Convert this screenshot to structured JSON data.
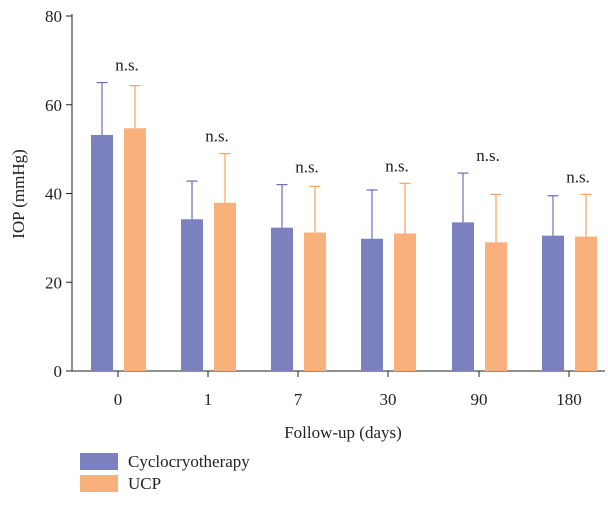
{
  "chart_data": {
    "type": "bar",
    "title": "",
    "xlabel": "Follow-up (days)",
    "ylabel": "IOP (mmHg)",
    "ylim": [
      0,
      80
    ],
    "yticks": [
      0,
      20,
      40,
      60,
      80
    ],
    "categories": [
      "0",
      "1",
      "7",
      "30",
      "90",
      "180"
    ],
    "series": [
      {
        "name": "Cyclocryotherapy",
        "color": "#7b80bf",
        "values": [
          53.2,
          34.2,
          32.3,
          29.8,
          33.5,
          30.5
        ],
        "error_upper": [
          65.0,
          42.8,
          42.0,
          40.8,
          44.6,
          39.5
        ]
      },
      {
        "name": "UCP",
        "color": "#f9b07a",
        "values": [
          54.7,
          37.9,
          31.2,
          31.0,
          29.0,
          30.3
        ],
        "error_upper": [
          64.3,
          49.0,
          41.6,
          42.3,
          39.8,
          39.8
        ]
      }
    ],
    "annotations": [
      "n.s.",
      "n.s.",
      "n.s.",
      "n.s.",
      "n.s.",
      "n.s."
    ],
    "legend_position": "bottom-left",
    "grid": false
  }
}
